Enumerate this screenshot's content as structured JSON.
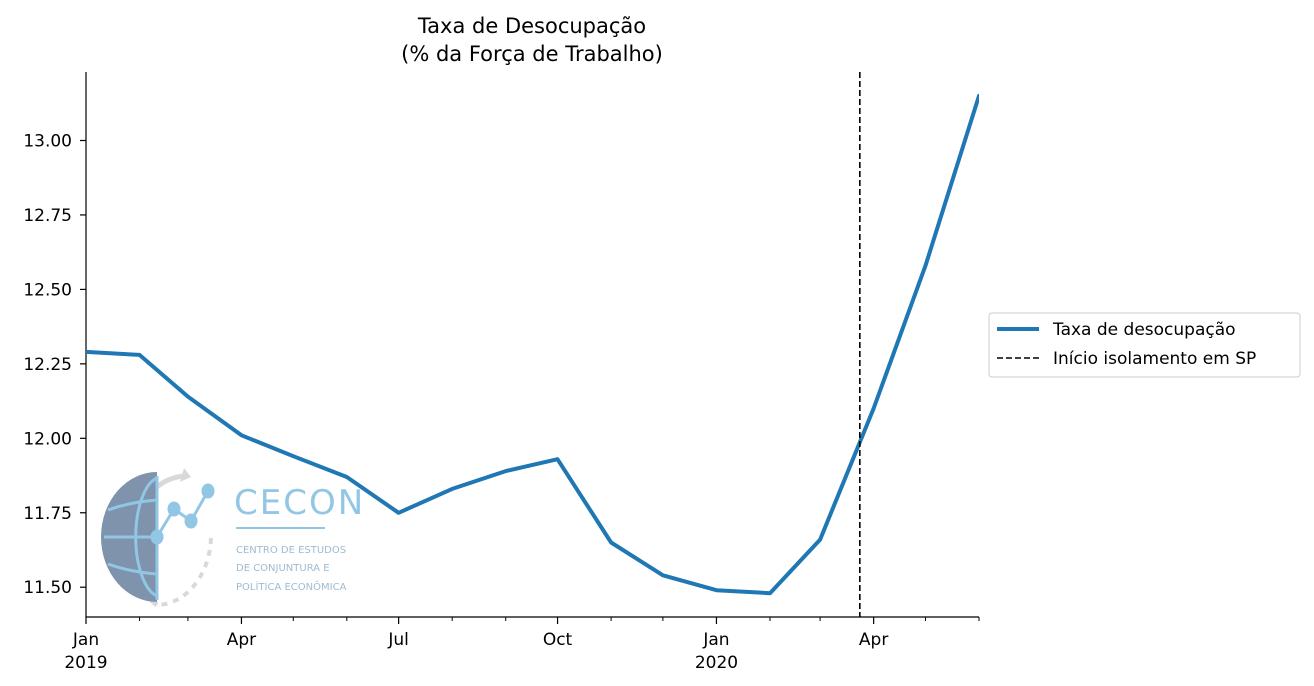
{
  "chart_data": {
    "type": "line",
    "title": "Taxa de Desocupação\n(% da Força de Trabalho)",
    "xlabel": "",
    "ylabel": "",
    "x": [
      "2019-01",
      "2019-02",
      "2019-03",
      "2019-04",
      "2019-05",
      "2019-06",
      "2019-07",
      "2019-08",
      "2019-09",
      "2019-10",
      "2019-11",
      "2019-12",
      "2020-01",
      "2020-02",
      "2020-03",
      "2020-04",
      "2020-05",
      "2020-06"
    ],
    "series": [
      {
        "name": "Taxa de desocupação",
        "color": "#1f77b4",
        "values": [
          12.29,
          12.28,
          12.14,
          12.01,
          11.94,
          11.87,
          11.75,
          11.83,
          11.89,
          11.93,
          11.65,
          11.54,
          11.49,
          11.48,
          11.66,
          12.1,
          12.58,
          13.15
        ]
      }
    ],
    "vline": {
      "name": "Início isolamento em SP",
      "x": "2020-03-24",
      "style": "dashed",
      "color": "#000000"
    },
    "ylim": [
      11.4,
      13.23
    ],
    "xlim": [
      "2019-01",
      "2020-06"
    ],
    "yticks": [
      "11.50",
      "11.75",
      "12.00",
      "12.25",
      "12.50",
      "12.75",
      "13.00"
    ],
    "xticks_major": [
      {
        "x": "2019-01",
        "label": "Jan",
        "sublabel": "2019"
      },
      {
        "x": "2019-04",
        "label": "Apr",
        "sublabel": ""
      },
      {
        "x": "2019-07",
        "label": "Jul",
        "sublabel": ""
      },
      {
        "x": "2019-10",
        "label": "Oct",
        "sublabel": ""
      },
      {
        "x": "2020-01",
        "label": "Jan",
        "sublabel": "2020"
      },
      {
        "x": "2020-04",
        "label": "Apr",
        "sublabel": ""
      }
    ],
    "xticks_minor": [
      "2019-02",
      "2019-03",
      "2019-05",
      "2019-06",
      "2019-08",
      "2019-09",
      "2019-11",
      "2019-12",
      "2020-02",
      "2020-03",
      "2020-05",
      "2020-06"
    ],
    "legend": {
      "placement": "center-right-outside",
      "entries": [
        {
          "label": "Taxa de desocupação",
          "style": "solid",
          "color": "#1f77b4"
        },
        {
          "label": "Início isolamento em SP",
          "style": "dashed",
          "color": "#000000"
        }
      ]
    },
    "grid": false
  },
  "logo": {
    "name": "CECON",
    "subtitle": [
      "CENTRO DE ESTUDOS",
      "DE CONJUNTURA E",
      "POLÍTICA ECONÔMICA"
    ]
  }
}
